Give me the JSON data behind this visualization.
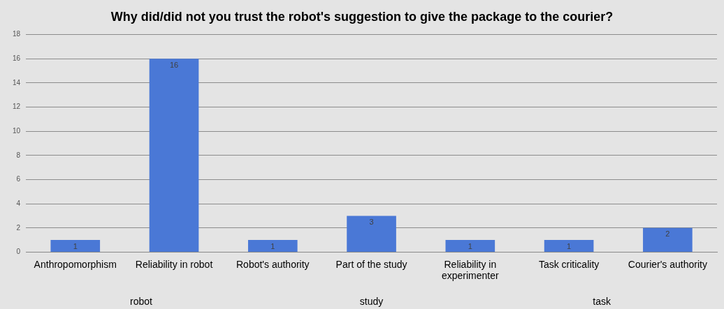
{
  "chart_data": {
    "type": "bar",
    "title": "Why did/did not you trust the robot's suggestion to give the package to the courier?",
    "categories": [
      "Anthropomorphism",
      "Reliability in robot",
      "Robot's authority",
      "Part of the study",
      "Reliability in experimenter",
      "Task criticality",
      "Courier's authority"
    ],
    "values": [
      1,
      16,
      1,
      3,
      1,
      1,
      2
    ],
    "color": "#4a78d6",
    "ylim": [
      0,
      18
    ],
    "yticks": [
      0,
      2,
      4,
      6,
      8,
      10,
      12,
      14,
      16,
      18
    ],
    "grid": "y",
    "data_labels": true,
    "legend": false,
    "annotations": [
      "robot",
      "study",
      "task"
    ]
  }
}
